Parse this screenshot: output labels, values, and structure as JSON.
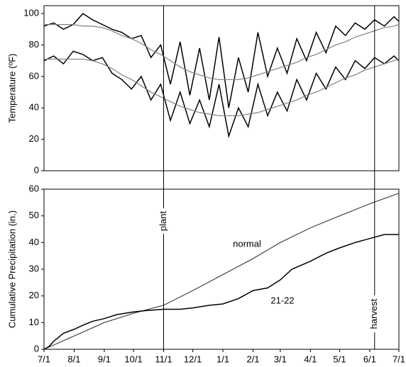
{
  "chart_data": [
    {
      "type": "line",
      "ylabel": "Temperature (ºF)",
      "xlim": [
        0,
        365
      ],
      "ylim": [
        0,
        105
      ],
      "yticks": [
        0,
        20,
        40,
        60,
        80,
        100
      ],
      "series": [
        {
          "color": "#000000",
          "x": [
            0,
            10,
            20,
            30,
            40,
            50,
            60,
            70,
            80,
            90,
            100,
            110,
            120,
            130,
            140,
            150,
            160,
            170,
            180,
            190,
            200,
            210,
            220,
            230,
            240,
            250,
            260,
            270,
            280,
            290,
            300,
            310,
            320,
            330,
            340,
            350,
            360,
            365
          ],
          "values": [
            92,
            94,
            90,
            93,
            100,
            96,
            93,
            90,
            88,
            84,
            86,
            72,
            80,
            55,
            82,
            48,
            78,
            45,
            85,
            40,
            72,
            50,
            88,
            60,
            78,
            62,
            84,
            70,
            88,
            75,
            92,
            86,
            94,
            90,
            96,
            92,
            98,
            95
          ]
        },
        {
          "color": "#000000",
          "x": [
            0,
            10,
            20,
            30,
            40,
            50,
            60,
            70,
            80,
            90,
            100,
            110,
            120,
            130,
            140,
            150,
            160,
            170,
            180,
            190,
            200,
            210,
            220,
            230,
            240,
            250,
            260,
            270,
            280,
            290,
            300,
            310,
            320,
            330,
            340,
            350,
            360,
            365
          ],
          "values": [
            70,
            73,
            68,
            76,
            74,
            70,
            72,
            62,
            58,
            52,
            60,
            45,
            55,
            32,
            50,
            30,
            45,
            28,
            55,
            22,
            40,
            28,
            55,
            35,
            50,
            38,
            58,
            45,
            62,
            52,
            66,
            58,
            70,
            65,
            72,
            68,
            73,
            70
          ]
        },
        {
          "color": "#808080",
          "x": [
            0,
            10,
            20,
            30,
            40,
            50,
            60,
            70,
            80,
            90,
            100,
            110,
            120,
            130,
            140,
            150,
            160,
            170,
            180,
            190,
            200,
            210,
            220,
            230,
            240,
            250,
            260,
            270,
            280,
            290,
            300,
            310,
            320,
            330,
            340,
            350,
            360,
            365
          ],
          "values": [
            93,
            93,
            93,
            93,
            92,
            92,
            91,
            89,
            86,
            84,
            81,
            77,
            74,
            70,
            66,
            63,
            61,
            59,
            58,
            58,
            58,
            59,
            61,
            63,
            65,
            67,
            69,
            72,
            74,
            77,
            80,
            82,
            85,
            87,
            89,
            91,
            92,
            93
          ]
        },
        {
          "color": "#808080",
          "x": [
            0,
            10,
            20,
            30,
            40,
            50,
            60,
            70,
            80,
            90,
            100,
            110,
            120,
            130,
            140,
            150,
            160,
            170,
            180,
            190,
            200,
            210,
            220,
            230,
            240,
            250,
            260,
            270,
            280,
            290,
            300,
            310,
            320,
            330,
            340,
            350,
            360,
            365
          ],
          "values": [
            71,
            71,
            71,
            71,
            71,
            70,
            68,
            65,
            61,
            58,
            54,
            50,
            47,
            44,
            41,
            39,
            37,
            36,
            35,
            35,
            35,
            36,
            37,
            39,
            41,
            43,
            45,
            48,
            50,
            53,
            56,
            59,
            61,
            64,
            66,
            68,
            70,
            71
          ]
        }
      ]
    },
    {
      "type": "line",
      "ylabel": "Cumulative Precipitation (in.)",
      "xlim": [
        0,
        365
      ],
      "ylim": [
        0,
        60
      ],
      "yticks": [
        0,
        10,
        20,
        30,
        40,
        50,
        60
      ],
      "xticks": [
        {
          "value": 0,
          "label": "7/1"
        },
        {
          "value": 31,
          "label": "8/1"
        },
        {
          "value": 62,
          "label": "9/1"
        },
        {
          "value": 92,
          "label": "10/1"
        },
        {
          "value": 123,
          "label": "11/1"
        },
        {
          "value": 153,
          "label": "12/1"
        },
        {
          "value": 184,
          "label": "1/1"
        },
        {
          "value": 215,
          "label": "2/1"
        },
        {
          "value": 243,
          "label": "3/1"
        },
        {
          "value": 274,
          "label": "4/1"
        },
        {
          "value": 304,
          "label": "5/1"
        },
        {
          "value": 335,
          "label": "6/1"
        },
        {
          "value": 365,
          "label": "7/1"
        }
      ],
      "series": [
        {
          "name": "normal",
          "color": "#444444",
          "x": [
            0,
            31,
            62,
            92,
            123,
            153,
            184,
            215,
            243,
            274,
            304,
            335,
            365
          ],
          "values": [
            0,
            5,
            10,
            13.5,
            16.5,
            22,
            28,
            34,
            40,
            45.5,
            50,
            54.5,
            58.5
          ]
        },
        {
          "name": "21-22",
          "color": "#000000",
          "x": [
            0,
            5,
            10,
            20,
            31,
            40,
            50,
            62,
            75,
            92,
            105,
            123,
            140,
            153,
            170,
            184,
            200,
            215,
            230,
            243,
            255,
            274,
            290,
            304,
            320,
            335,
            350,
            365
          ],
          "values": [
            0,
            1,
            3,
            6,
            7.5,
            9,
            10.5,
            11.5,
            13,
            14,
            14.5,
            15,
            15,
            15.5,
            16.5,
            17,
            19,
            22,
            23,
            26,
            30,
            33,
            36,
            38,
            40,
            41.5,
            43,
            43
          ]
        }
      ],
      "annotations": [
        {
          "text": "plant",
          "x": 123
        },
        {
          "text": "harvest",
          "x": 340
        }
      ]
    }
  ]
}
